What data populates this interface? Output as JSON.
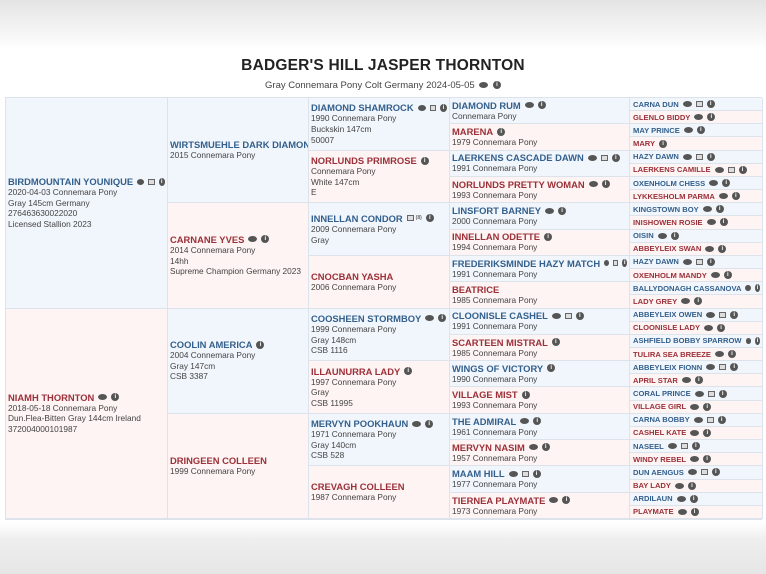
{
  "header": {
    "title": "BADGER'S HILL JASPER THORNTON",
    "subtitle": "Gray Connemara Pony Colt Germany 2024-05-05",
    "icons": [
      "comment-icon",
      "info-icon"
    ]
  },
  "colors": {
    "male_text": "#335f8c",
    "female_text": "#9c3039",
    "male_bg": "#f1f6fc",
    "female_bg": "#fdf4f3"
  },
  "pedigree": {
    "gen1": [
      {
        "name": "BIRDMOUNTAIN YOUNIQUE",
        "sex": "m",
        "icons": [
          "c",
          "p",
          "i"
        ],
        "lines": [
          "2020-04-03 Connemara Pony",
          "Gray 145cm Germany",
          "276463630022020",
          "Licensed Stallion 2023"
        ]
      },
      {
        "name": "NIAMH THORNTON",
        "sex": "f",
        "icons": [
          "c",
          "i"
        ],
        "lines": [
          "2018-05-18 Connemara Pony",
          "Dun.Flea-Bitten Gray 144cm Ireland",
          "372004000101987"
        ]
      }
    ],
    "gen2": [
      {
        "name": "WIRTSMUEHLE DARK DIAMOND",
        "sex": "m",
        "icons": [],
        "lines": [
          "2015 Connemara Pony"
        ]
      },
      {
        "name": "CARNANE YVES",
        "sex": "f",
        "icons": [
          "c",
          "i"
        ],
        "lines": [
          "2014 Connemara Pony",
          "14hh",
          "Supreme Champion Germany 2023"
        ]
      },
      {
        "name": "COOLIN AMERICA",
        "sex": "m",
        "icons": [
          "i"
        ],
        "lines": [
          "2004 Connemara Pony",
          "Gray 147cm",
          "CSB 3387"
        ]
      },
      {
        "name": "DRINGEEN COLLEEN",
        "sex": "f",
        "icons": [],
        "lines": [
          "1999 Connemara Pony"
        ]
      }
    ],
    "gen3": [
      {
        "name": "DIAMOND SHAMROCK",
        "sex": "m",
        "icons": [
          "c",
          "p",
          "i"
        ],
        "lines": [
          "1990 Connemara Pony",
          "Buckskin 147cm",
          "50007"
        ]
      },
      {
        "name": "NORLUNDS PRIMROSE",
        "sex": "f",
        "icons": [
          "i"
        ],
        "lines": [
          "Connemara Pony",
          "White 147cm",
          "E"
        ]
      },
      {
        "name": "INNELLAN CONDOR",
        "sex": "m",
        "icons": [
          "p",
          "i"
        ],
        "photo_count": "(8)",
        "lines": [
          "2009 Connemara Pony",
          "Gray"
        ]
      },
      {
        "name": "CNOCBAN YASHA",
        "sex": "f",
        "icons": [],
        "lines": [
          "2006 Connemara Pony"
        ]
      },
      {
        "name": "COOSHEEN STORMBOY",
        "sex": "m",
        "icons": [
          "c",
          "i"
        ],
        "lines": [
          "1999 Connemara Pony",
          "Gray 148cm",
          "CSB 1116"
        ]
      },
      {
        "name": "ILLAUNURRA LADY",
        "sex": "f",
        "icons": [
          "i"
        ],
        "lines": [
          "1997 Connemara Pony",
          "Gray",
          "CSB 11995"
        ]
      },
      {
        "name": "MERVYN POOKHAUN",
        "sex": "m",
        "icons": [
          "c",
          "i"
        ],
        "lines": [
          "1971 Connemara Pony",
          "Gray 140cm",
          "CSB 528"
        ]
      },
      {
        "name": "CREVAGH COLLEEN",
        "sex": "f",
        "icons": [],
        "lines": [
          "1987 Connemara Pony"
        ]
      }
    ],
    "gen4": [
      {
        "name": "DIAMOND RUM",
        "sex": "m",
        "icons": [
          "c",
          "i"
        ],
        "lines": [
          "Connemara Pony"
        ]
      },
      {
        "name": "MARENA",
        "sex": "f",
        "icons": [
          "i"
        ],
        "lines": [
          "1979 Connemara Pony"
        ]
      },
      {
        "name": "LAERKENS CASCADE DAWN",
        "sex": "m",
        "icons": [
          "c",
          "p",
          "i"
        ],
        "lines": [
          "1991 Connemara Pony"
        ]
      },
      {
        "name": "NORLUNDS PRETTY WOMAN",
        "sex": "f",
        "icons": [
          "c",
          "i"
        ],
        "lines": [
          "1993 Connemara Pony"
        ]
      },
      {
        "name": "LINSFORT BARNEY",
        "sex": "m",
        "icons": [
          "c",
          "i"
        ],
        "lines": [
          "2000 Connemara Pony"
        ]
      },
      {
        "name": "INNELLAN ODETTE",
        "sex": "f",
        "icons": [
          "i"
        ],
        "lines": [
          "1994 Connemara Pony"
        ]
      },
      {
        "name": "FREDERIKSMINDE HAZY MATCH",
        "sex": "m",
        "icons": [
          "c",
          "p",
          "i"
        ],
        "lines": [
          "1991 Connemara Pony"
        ]
      },
      {
        "name": "BEATRICE",
        "sex": "f",
        "icons": [],
        "lines": [
          "1985 Connemara Pony"
        ]
      },
      {
        "name": "CLOONISLE CASHEL",
        "sex": "m",
        "icons": [
          "c",
          "p",
          "i"
        ],
        "lines": [
          "1991 Connemara Pony"
        ]
      },
      {
        "name": "SCARTEEN MISTRAL",
        "sex": "f",
        "icons": [
          "i"
        ],
        "lines": [
          "1985 Connemara Pony"
        ]
      },
      {
        "name": "WINGS OF VICTORY",
        "sex": "m",
        "icons": [
          "i"
        ],
        "lines": [
          "1990 Connemara Pony"
        ]
      },
      {
        "name": "VILLAGE MIST",
        "sex": "f",
        "icons": [
          "i"
        ],
        "lines": [
          "1993 Connemara Pony"
        ]
      },
      {
        "name": "THE ADMIRAL",
        "sex": "m",
        "icons": [
          "c",
          "i"
        ],
        "lines": [
          "1961 Connemara Pony"
        ]
      },
      {
        "name": "MERVYN NASIM",
        "sex": "f",
        "icons": [
          "c",
          "i"
        ],
        "lines": [
          "1957 Connemara Pony"
        ]
      },
      {
        "name": "MAAM HILL",
        "sex": "m",
        "icons": [
          "c",
          "p",
          "i"
        ],
        "lines": [
          "1977 Connemara Pony"
        ]
      },
      {
        "name": "TIERNEA PLAYMATE",
        "sex": "f",
        "icons": [
          "c",
          "i"
        ],
        "lines": [
          "1973 Connemara Pony"
        ]
      }
    ],
    "gen5": [
      {
        "name": "CARNA DUN",
        "sex": "m",
        "icons": [
          "c",
          "p",
          "i"
        ],
        "lines": []
      },
      {
        "name": "GLENLO BIDDY",
        "sex": "f",
        "icons": [
          "c",
          "i"
        ],
        "lines": []
      },
      {
        "name": "MAY PRINCE",
        "sex": "m",
        "icons": [
          "c",
          "i"
        ],
        "lines": []
      },
      {
        "name": "MARY",
        "sex": "f",
        "icons": [
          "i"
        ],
        "lines": []
      },
      {
        "name": "HAZY DAWN",
        "sex": "m",
        "icons": [
          "c",
          "p",
          "i"
        ],
        "lines": []
      },
      {
        "name": "LAERKENS CAMILLE",
        "sex": "f",
        "icons": [
          "c",
          "p",
          "i"
        ],
        "lines": []
      },
      {
        "name": "OXENHOLM CHESS",
        "sex": "m",
        "icons": [
          "c",
          "i"
        ],
        "lines": []
      },
      {
        "name": "LYKKESHOLM PARMA",
        "sex": "f",
        "icons": [
          "c",
          "i"
        ],
        "lines": []
      },
      {
        "name": "KINGSTOWN BOY",
        "sex": "m",
        "icons": [
          "c",
          "i"
        ],
        "lines": []
      },
      {
        "name": "INISHOWEN ROSIE",
        "sex": "f",
        "icons": [
          "c",
          "i"
        ],
        "lines": []
      },
      {
        "name": "OISIN",
        "sex": "m",
        "icons": [
          "c",
          "i"
        ],
        "lines": []
      },
      {
        "name": "ABBEYLEIX SWAN",
        "sex": "f",
        "icons": [
          "c",
          "i"
        ],
        "lines": []
      },
      {
        "name": "HAZY DAWN",
        "sex": "m",
        "icons": [
          "c",
          "p",
          "i"
        ],
        "lines": []
      },
      {
        "name": "OXENHOLM MANDY",
        "sex": "f",
        "icons": [
          "c",
          "i"
        ],
        "lines": []
      },
      {
        "name": "BALLYDONAGH CASSANOVA",
        "sex": "m",
        "icons": [
          "c",
          "i"
        ],
        "lines": []
      },
      {
        "name": "LADY GREY",
        "sex": "f",
        "icons": [
          "c",
          "i"
        ],
        "lines": []
      },
      {
        "name": "ABBEYLEIX OWEN",
        "sex": "m",
        "icons": [
          "c",
          "p",
          "i"
        ],
        "lines": []
      },
      {
        "name": "CLOONISLE LADY",
        "sex": "f",
        "icons": [
          "c",
          "i"
        ],
        "lines": []
      },
      {
        "name": "ASHFIELD BOBBY SPARROW",
        "sex": "m",
        "icons": [
          "c",
          "i"
        ],
        "lines": []
      },
      {
        "name": "TULIRA SEA BREEZE",
        "sex": "f",
        "icons": [
          "c",
          "i"
        ],
        "lines": []
      },
      {
        "name": "ABBEYLEIX FIONN",
        "sex": "m",
        "icons": [
          "c",
          "p",
          "i"
        ],
        "lines": []
      },
      {
        "name": "APRIL STAR",
        "sex": "f",
        "icons": [
          "c",
          "i"
        ],
        "lines": []
      },
      {
        "name": "CORAL PRINCE",
        "sex": "m",
        "icons": [
          "c",
          "p",
          "i"
        ],
        "lines": []
      },
      {
        "name": "VILLAGE GIRL",
        "sex": "f",
        "icons": [
          "c",
          "i"
        ],
        "lines": []
      },
      {
        "name": "CARNA BOBBY",
        "sex": "m",
        "icons": [
          "c",
          "p",
          "i"
        ],
        "lines": []
      },
      {
        "name": "CASHEL KATE",
        "sex": "f",
        "icons": [
          "c",
          "i"
        ],
        "lines": []
      },
      {
        "name": "NASEEL",
        "sex": "m",
        "icons": [
          "c",
          "p",
          "i"
        ],
        "lines": []
      },
      {
        "name": "WINDY REBEL",
        "sex": "f",
        "icons": [
          "c",
          "i"
        ],
        "lines": []
      },
      {
        "name": "DUN AENGUS",
        "sex": "m",
        "icons": [
          "c",
          "p",
          "i"
        ],
        "lines": []
      },
      {
        "name": "BAY LADY",
        "sex": "f",
        "icons": [
          "c",
          "i"
        ],
        "lines": []
      },
      {
        "name": "ARDILAUN",
        "sex": "m",
        "icons": [
          "c",
          "i"
        ],
        "lines": []
      },
      {
        "name": "PLAYMATE",
        "sex": "f",
        "icons": [
          "c",
          "i"
        ],
        "lines": []
      }
    ]
  }
}
